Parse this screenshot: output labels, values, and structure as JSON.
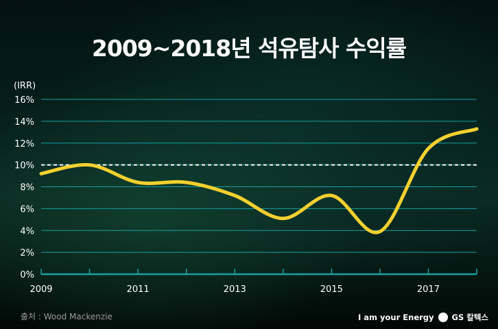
{
  "chart_data": {
    "type": "line",
    "title": "2009~2018년 석유탐사 수익률",
    "ylabel": "(IRR)",
    "xlabel": "",
    "x": [
      2009,
      2010,
      2011,
      2012,
      2013,
      2014,
      2015,
      2016,
      2017,
      2018
    ],
    "values": [
      9.2,
      10.0,
      8.4,
      8.4,
      7.2,
      5.1,
      7.2,
      3.9,
      11.5,
      13.3
    ],
    "xticks": [
      "2009",
      "2011",
      "2013",
      "2015",
      "2017"
    ],
    "yticks": [
      "0%",
      "2%",
      "4%",
      "6%",
      "8%",
      "10%",
      "12%",
      "14%",
      "16%"
    ],
    "ylim": [
      0,
      16
    ],
    "xlim": [
      2009,
      2018
    ],
    "reference_line": 10,
    "grid": true,
    "colors": {
      "line": "#f5d030",
      "grid": "#1aa0a0",
      "reference": "#ffffff"
    }
  },
  "source": "출처 : Wood Mackenzie",
  "brand": {
    "slogan": "I am your Energy",
    "logo": "GS 칼텍스"
  }
}
